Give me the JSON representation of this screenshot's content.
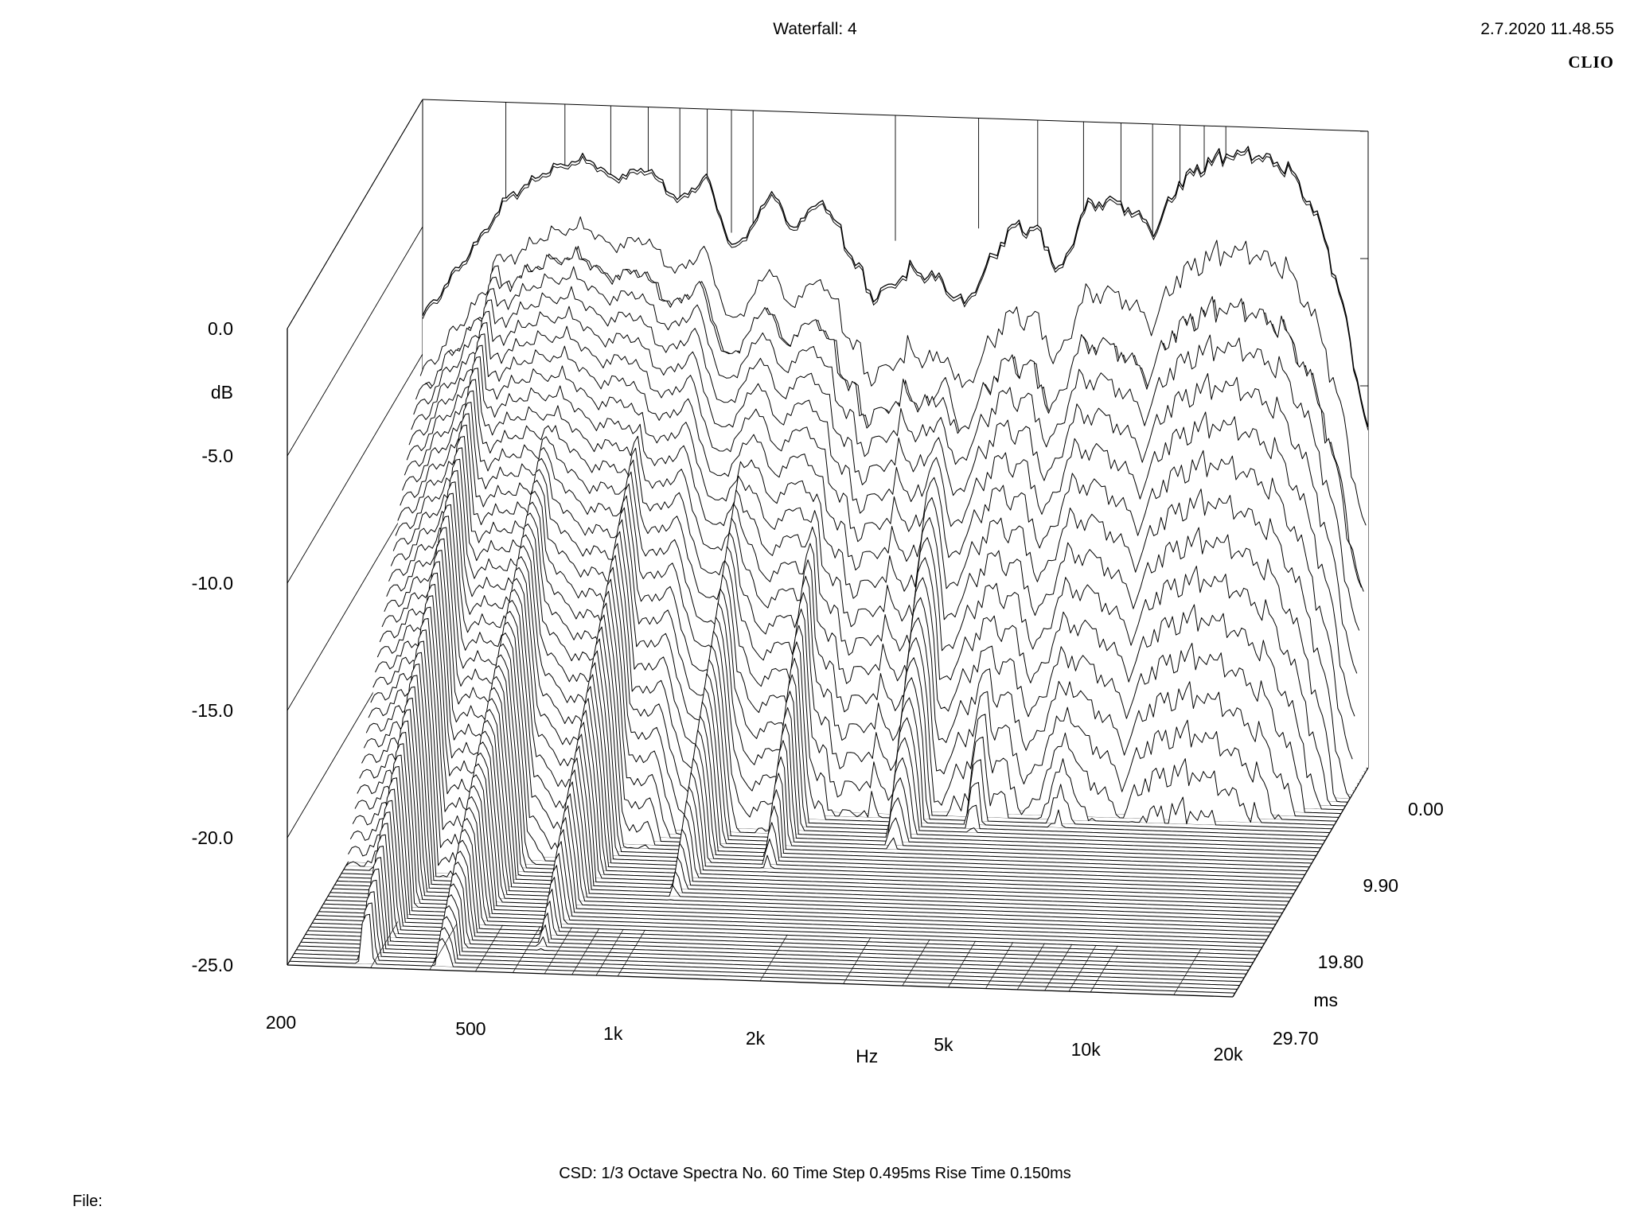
{
  "header": {
    "title": "Waterfall: 4",
    "timestamp": "2.7.2020 11.48.55",
    "brand": "CLIO"
  },
  "footer": {
    "settings": "CSD:    1/3 Octave    Spectra No. 60    Time Step 0.495ms    Rise Time 0.150ms",
    "file_label": "File:"
  },
  "chart_data": {
    "type": "waterfall",
    "x_axis": {
      "label": "Hz",
      "scale": "log",
      "range": [
        200,
        20000
      ],
      "ticks": [
        {
          "value": 200,
          "label": "200"
        },
        {
          "value": 500,
          "label": "500"
        },
        {
          "value": 1000,
          "label": "1k"
        },
        {
          "value": 2000,
          "label": "2k"
        },
        {
          "value": 5000,
          "label": "5k"
        },
        {
          "value": 10000,
          "label": "10k"
        },
        {
          "value": 20000,
          "label": "20k"
        }
      ]
    },
    "y_axis": {
      "label": "dB",
      "range": [
        -25,
        0
      ],
      "ticks": [
        {
          "value": 0,
          "label": "0.0"
        },
        {
          "value": -5,
          "label": "-5.0"
        },
        {
          "value": -10,
          "label": "-10.0"
        },
        {
          "value": -15,
          "label": "-15.0"
        },
        {
          "value": -20,
          "label": "-20.0"
        },
        {
          "value": -25,
          "label": "-25.0"
        }
      ]
    },
    "z_axis": {
      "label": "ms",
      "range": [
        0,
        29.7
      ],
      "ticks": [
        {
          "value": 0,
          "label": "0.00"
        },
        {
          "value": 9.9,
          "label": "9.90"
        },
        {
          "value": 19.8,
          "label": "19.80"
        },
        {
          "value": 29.7,
          "label": "29.70"
        }
      ]
    },
    "spectra_count": 60,
    "time_step_ms": 0.495,
    "initial_response": {
      "freqs": [
        200,
        250,
        300,
        350,
        400,
        450,
        500,
        600,
        700,
        800,
        900,
        1000,
        1100,
        1200,
        1400,
        1600,
        1800,
        2000,
        2200,
        2500,
        2800,
        3200,
        3600,
        4000,
        4500,
        5000,
        5600,
        6300,
        7100,
        8000,
        9000,
        10000,
        11200,
        12500,
        14000,
        16000,
        18000,
        20000
      ],
      "db": [
        -8.5,
        -6.0,
        -3.8,
        -2.9,
        -2.3,
        -2.1,
        -2.8,
        -2.4,
        -3.6,
        -2.6,
        -5.5,
        -4.5,
        -3.0,
        -4.6,
        -3.4,
        -5.3,
        -7.2,
        -6.5,
        -6.0,
        -6.5,
        -7.4,
        -5.4,
        -4.0,
        -4.3,
        -6.0,
        -3.4,
        -3.0,
        -3.4,
        -4.2,
        -2.2,
        -1.5,
        -1.1,
        -1.0,
        -1.2,
        -1.8,
        -3.8,
        -7.5,
        -12.0
      ]
    },
    "grid": false,
    "legend": "none"
  }
}
